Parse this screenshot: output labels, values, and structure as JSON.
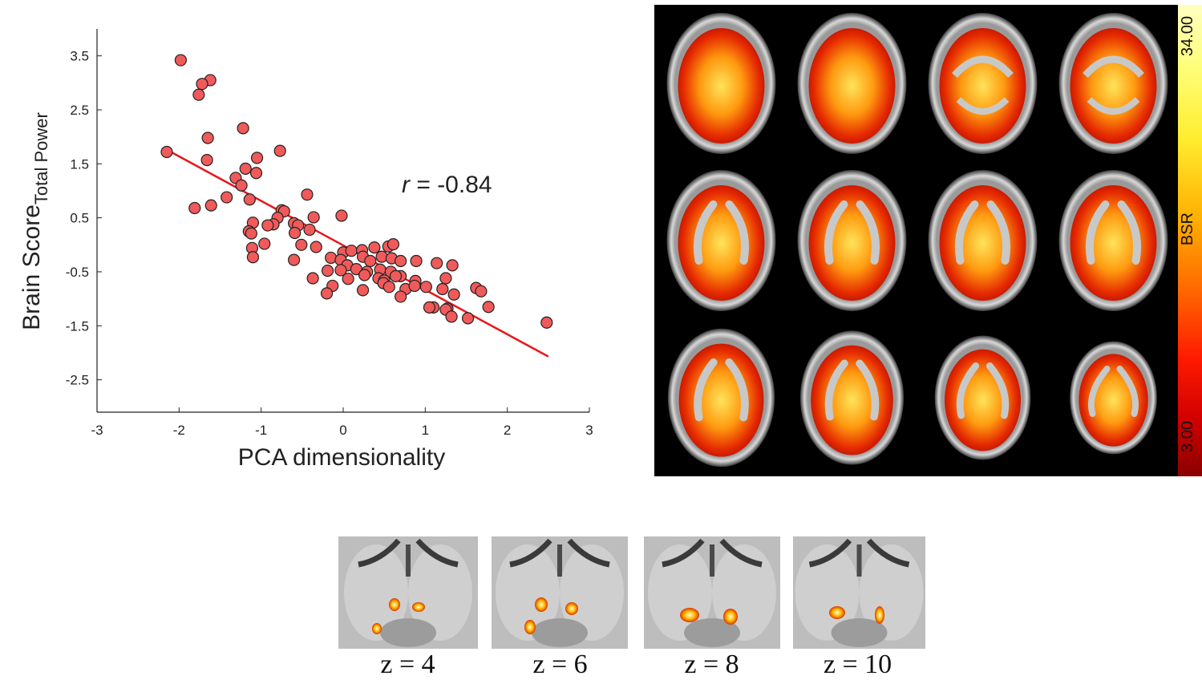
{
  "chart_data": {
    "type": "scatter",
    "xlabel": "PCA dimensionality",
    "ylabel_main": "Brain Score",
    "ylabel_sub": "Total Power",
    "xlim": [
      -3,
      3
    ],
    "ylim": [
      -3.1,
      4.0
    ],
    "xticks": [
      -3,
      -2,
      -1,
      0,
      1,
      2,
      3
    ],
    "yticks": [
      -2.5,
      -1.5,
      -0.5,
      0.5,
      1.5,
      2.5,
      3.5
    ],
    "annotation": {
      "var": "r",
      "text": " = -0.84"
    },
    "fit_line": {
      "x": [
        -2.1,
        2.5
      ],
      "y": [
        1.72,
        -2.07
      ]
    },
    "colors": {
      "marker_fill": "#f05a5a",
      "marker_edge": "#222222",
      "fit_line": "#e8161b"
    },
    "points": [
      [
        -1.98,
        3.42
      ],
      [
        -1.62,
        3.05
      ],
      [
        -1.72,
        2.98
      ],
      [
        -1.76,
        2.78
      ],
      [
        -1.65,
        1.98
      ],
      [
        -1.22,
        2.16
      ],
      [
        -2.15,
        1.72
      ],
      [
        -0.77,
        1.74
      ],
      [
        -1.66,
        1.57
      ],
      [
        -1.05,
        1.61
      ],
      [
        -1.19,
        1.41
      ],
      [
        -1.31,
        1.24
      ],
      [
        -1.24,
        1.1
      ],
      [
        -1.06,
        1.33
      ],
      [
        -0.44,
        0.93
      ],
      [
        -1.42,
        0.88
      ],
      [
        -1.14,
        0.84
      ],
      [
        -1.81,
        0.68
      ],
      [
        -1.61,
        0.73
      ],
      [
        -0.75,
        0.64
      ],
      [
        -0.72,
        0.62
      ],
      [
        -0.8,
        0.5
      ],
      [
        -0.36,
        0.51
      ],
      [
        -0.02,
        0.54
      ],
      [
        -0.85,
        0.38
      ],
      [
        -0.6,
        0.4
      ],
      [
        -0.55,
        0.36
      ],
      [
        -0.41,
        0.28
      ],
      [
        -1.1,
        0.41
      ],
      [
        -1.15,
        0.25
      ],
      [
        -0.92,
        0.36
      ],
      [
        -0.59,
        0.22
      ],
      [
        -1.12,
        0.21
      ],
      [
        -0.96,
        0.02
      ],
      [
        -0.51,
        0.0
      ],
      [
        -0.33,
        -0.04
      ],
      [
        -1.11,
        -0.06
      ],
      [
        -1.1,
        -0.23
      ],
      [
        -0.6,
        -0.28
      ],
      [
        0.0,
        -0.14
      ],
      [
        0.1,
        -0.11
      ],
      [
        0.23,
        -0.1
      ],
      [
        0.38,
        -0.05
      ],
      [
        0.55,
        -0.03
      ],
      [
        0.61,
        0.01
      ],
      [
        -0.15,
        -0.24
      ],
      [
        -0.03,
        -0.28
      ],
      [
        0.05,
        -0.38
      ],
      [
        0.24,
        -0.22
      ],
      [
        0.33,
        -0.3
      ],
      [
        0.47,
        -0.22
      ],
      [
        0.59,
        -0.25
      ],
      [
        0.7,
        -0.3
      ],
      [
        0.89,
        -0.3
      ],
      [
        -0.19,
        -0.48
      ],
      [
        -0.03,
        -0.47
      ],
      [
        0.16,
        -0.45
      ],
      [
        0.29,
        -0.5
      ],
      [
        0.45,
        -0.46
      ],
      [
        0.58,
        -0.5
      ],
      [
        0.7,
        -0.58
      ],
      [
        1.14,
        -0.34
      ],
      [
        1.33,
        -0.38
      ],
      [
        -0.37,
        -0.62
      ],
      [
        0.06,
        -0.63
      ],
      [
        0.26,
        -0.56
      ],
      [
        0.43,
        -0.62
      ],
      [
        0.5,
        -0.66
      ],
      [
        0.64,
        -0.58
      ],
      [
        0.88,
        -0.67
      ],
      [
        1.01,
        -0.78
      ],
      [
        1.25,
        -0.62
      ],
      [
        -0.13,
        -0.76
      ],
      [
        0.24,
        -0.84
      ],
      [
        0.49,
        -0.71
      ],
      [
        0.76,
        -0.82
      ],
      [
        0.87,
        -0.76
      ],
      [
        1.21,
        -0.82
      ],
      [
        1.62,
        -0.8
      ],
      [
        1.68,
        -0.86
      ],
      [
        -0.2,
        -0.9
      ],
      [
        0.56,
        -0.78
      ],
      [
        0.7,
        -0.96
      ],
      [
        1.35,
        -0.92
      ],
      [
        1.77,
        -1.15
      ],
      [
        1.1,
        -1.16
      ],
      [
        1.05,
        -1.16
      ],
      [
        1.27,
        -1.18
      ],
      [
        1.25,
        -1.2
      ],
      [
        1.32,
        -1.33
      ],
      [
        1.52,
        -1.36
      ],
      [
        2.48,
        -1.44
      ]
    ]
  },
  "brain_panel": {
    "colorbar_label": "BSR",
    "colorbar_max": "34.00",
    "colorbar_min": "3.00",
    "slices": 12
  },
  "thumbnails": [
    {
      "label": "z = 4"
    },
    {
      "label": "z = 6"
    },
    {
      "label": "z = 8"
    },
    {
      "label": "z = 10"
    }
  ]
}
